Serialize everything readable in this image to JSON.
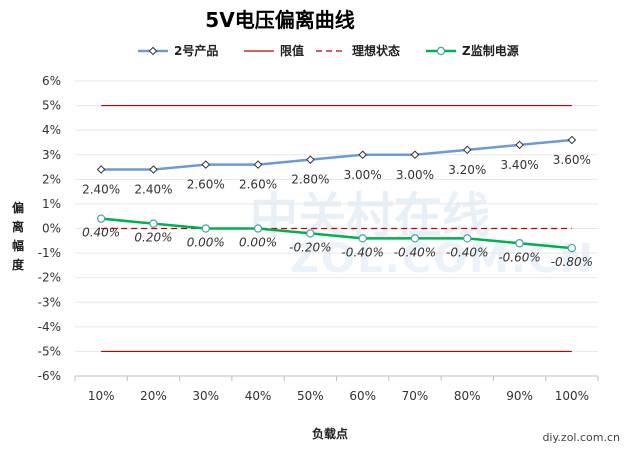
{
  "chart_data": {
    "type": "line",
    "title": "5V电压偏离曲线",
    "xlabel": "负载点",
    "ylabel": "偏离幅度",
    "categories": [
      "10%",
      "20%",
      "30%",
      "40%",
      "50%",
      "60%",
      "70%",
      "80%",
      "90%",
      "100%"
    ],
    "y_ticks": [
      "6%",
      "5%",
      "4%",
      "3%",
      "2%",
      "1%",
      "0%",
      "-1%",
      "-2%",
      "-3%",
      "-4%",
      "-5%",
      "-6%"
    ],
    "ylim": [
      -6,
      6
    ],
    "grid": true,
    "legend_position": "top",
    "series": [
      {
        "name": "2号产品",
        "color": "#6a9bd8",
        "marker": "diamond",
        "values": [
          2.4,
          2.4,
          2.6,
          2.6,
          2.8,
          3.0,
          3.0,
          3.2,
          3.4,
          3.6
        ],
        "labels": [
          "2.40%",
          "2.40%",
          "2.60%",
          "2.60%",
          "2.80%",
          "3.00%",
          "3.00%",
          "3.20%",
          "3.40%",
          "3.60%"
        ]
      },
      {
        "name": "限值",
        "color": "#c00000",
        "style": "solid",
        "values_upper": 5,
        "values_lower": -5
      },
      {
        "name": "理想状态",
        "color": "#c00000",
        "style": "dashed",
        "values": [
          0,
          0,
          0,
          0,
          0,
          0,
          0,
          0,
          0,
          0
        ]
      },
      {
        "name": "Z监制电源",
        "color": "#00b050",
        "marker": "circle",
        "values": [
          0.4,
          0.2,
          0.0,
          0.0,
          -0.2,
          -0.4,
          -0.4,
          -0.4,
          -0.6,
          -0.8
        ],
        "labels": [
          "0.40%",
          "0.20%",
          "0.00%",
          "0.00%",
          "-0.20%",
          "-0.40%",
          "-0.40%",
          "-0.40%",
          "-0.60%",
          "-0.80%"
        ]
      }
    ]
  },
  "watermark": {
    "main": "中关村在线",
    "sub": "ZOL.COM.CN"
  },
  "credit": "diy.zol.com.cn"
}
